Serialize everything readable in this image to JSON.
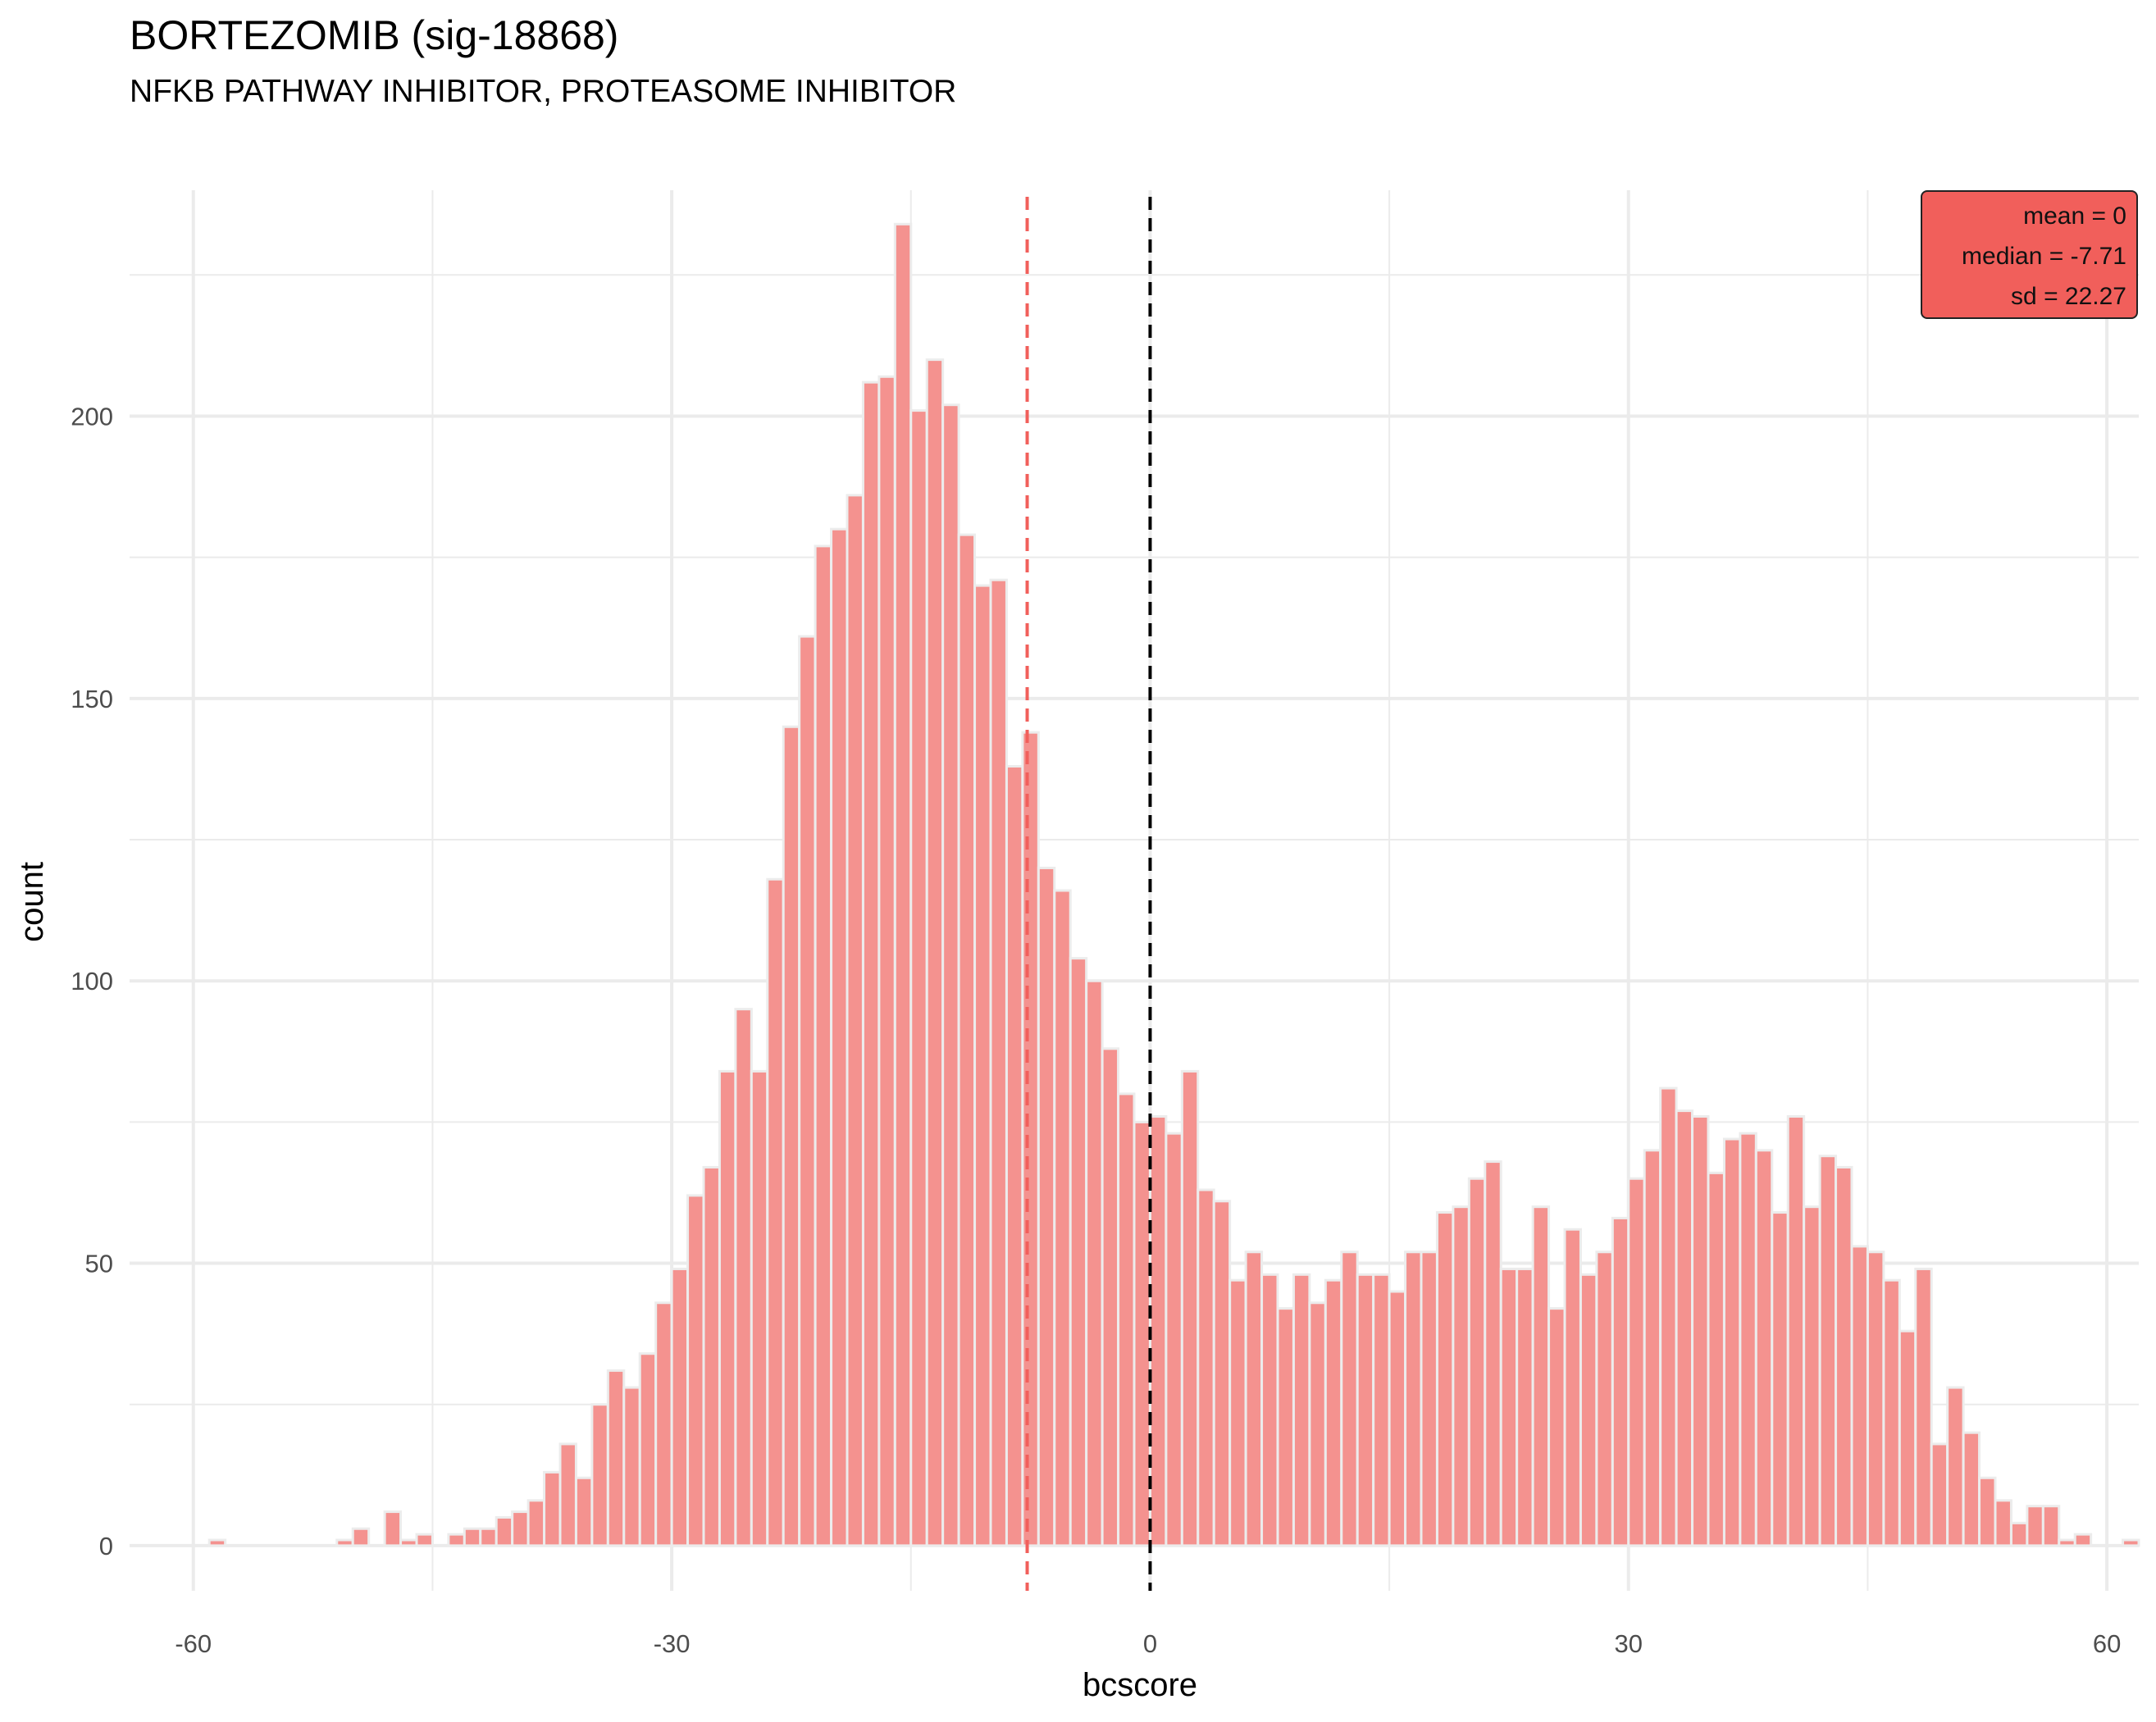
{
  "title": "BORTEZOMIB (sig-18868)",
  "subtitle": "NFKB PATHWAY INHIBITOR, PROTEASOME INHIBITOR",
  "stats": {
    "mean": "mean = 0",
    "median": "median = -7.71",
    "sd": "sd = 22.27"
  },
  "colors": {
    "bar_fill": "#f4928f",
    "bar_outline": "#ececec",
    "median_line": "#f15f5b",
    "zero_line": "#000000",
    "stats_box": "#f15f5b",
    "grid": "#ebebeb"
  },
  "chart_data": {
    "type": "bar",
    "title": "BORTEZOMIB (sig-18868)",
    "subtitle": "NFKB PATHWAY INHIBITOR, PROTEASOME INHIBITOR",
    "xlabel": "bcscore",
    "ylabel": "count",
    "xlim": [
      -64,
      62
    ],
    "ylim": [
      -8,
      240
    ],
    "x_ticks": [
      -60,
      -30,
      0,
      30,
      60
    ],
    "y_ticks": [
      0,
      50,
      100,
      150,
      200
    ],
    "grid": true,
    "legend": "none",
    "bin_width": 1,
    "bin_start": -60,
    "counts": [
      0,
      1,
      0,
      0,
      0,
      0,
      0,
      0,
      0,
      1,
      3,
      0,
      6,
      1,
      2,
      0,
      2,
      3,
      3,
      5,
      6,
      8,
      13,
      18,
      12,
      25,
      31,
      28,
      34,
      43,
      49,
      62,
      67,
      84,
      95,
      84,
      118,
      145,
      161,
      177,
      180,
      186,
      206,
      207,
      234,
      201,
      210,
      202,
      179,
      170,
      171,
      138,
      144,
      120,
      116,
      104,
      100,
      88,
      80,
      75,
      76,
      73,
      84,
      63,
      61,
      47,
      52,
      48,
      42,
      48,
      43,
      47,
      52,
      48,
      48,
      45,
      52,
      52,
      59,
      60,
      65,
      68,
      49,
      49,
      60,
      42,
      56,
      48,
      52,
      58,
      65,
      70,
      81,
      77,
      76,
      66,
      72,
      73,
      70,
      59,
      76,
      60,
      69,
      67,
      53,
      52,
      47,
      38,
      49,
      18,
      28,
      20,
      12,
      8,
      4,
      7,
      7,
      1,
      2,
      0,
      0,
      1
    ],
    "vlines": [
      {
        "x": -7.71,
        "style": "dashed",
        "color": "#f15f5b"
      },
      {
        "x": 0,
        "style": "dashed",
        "color": "#000000"
      }
    ]
  }
}
